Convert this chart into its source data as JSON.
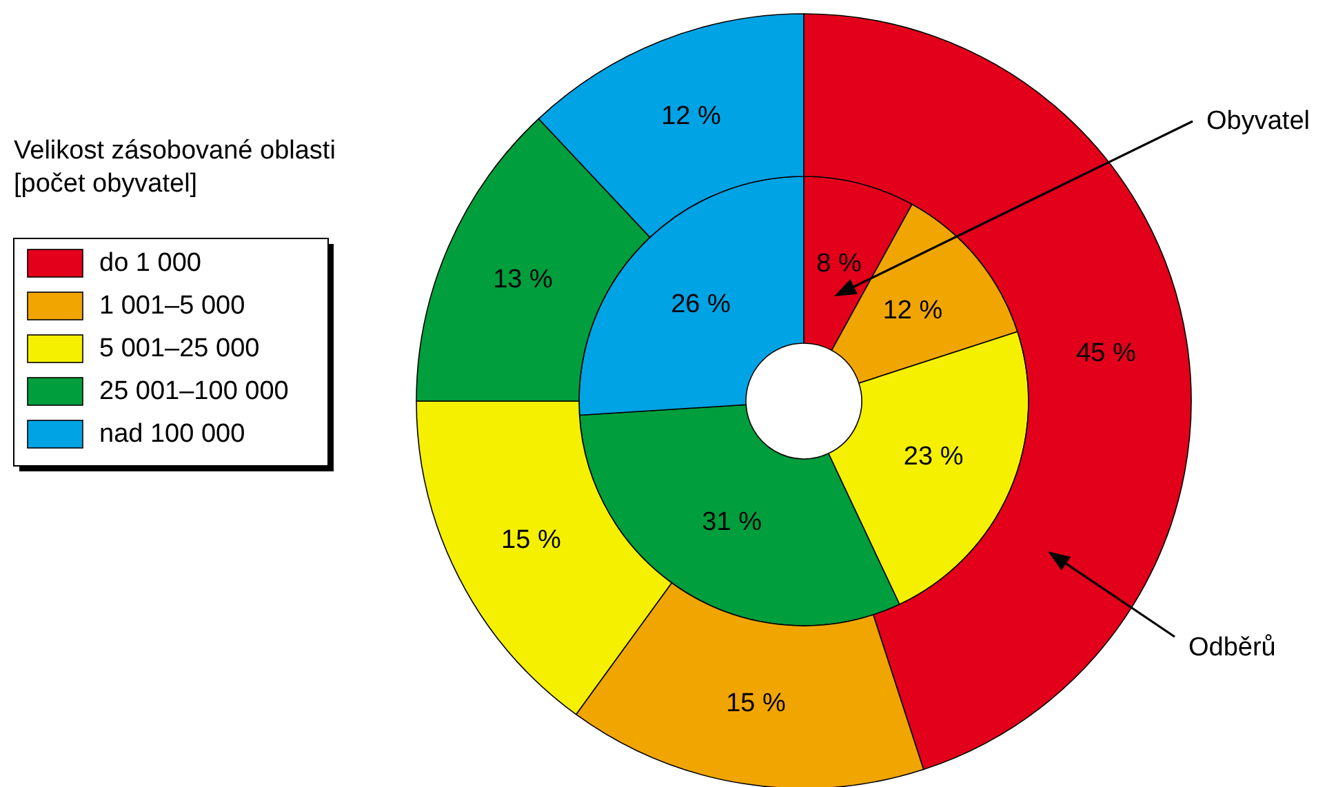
{
  "chart_data": {
    "type": "donut",
    "categories": [
      "do 1 000",
      "1 001–5 000",
      "5 001–25 000",
      "25 001–100 000",
      "nad 100 000"
    ],
    "legend_title": "Velikost zásobované oblasti\n[počet obyvatel]",
    "legend": "left",
    "series": [
      {
        "name": "Obyvatel",
        "values": [
          8,
          12,
          23,
          31,
          26
        ],
        "value_labels": [
          "8 %",
          "12 %",
          "23 %",
          "31 %",
          "26 %"
        ],
        "colors": [
          "#e2001a",
          "#f0a500",
          "#f5f000",
          "#009e3c",
          "#00a3e4"
        ]
      },
      {
        "name": "Odběrů",
        "values": [
          45,
          15,
          15,
          13,
          12
        ],
        "value_labels": [
          "45 %",
          "15 %",
          "15 %",
          "13 %",
          "12 %"
        ],
        "colors": [
          "#e2001a",
          "#f0a500",
          "#f5f000",
          "#009e3c",
          "#00a3e4"
        ]
      }
    ]
  }
}
